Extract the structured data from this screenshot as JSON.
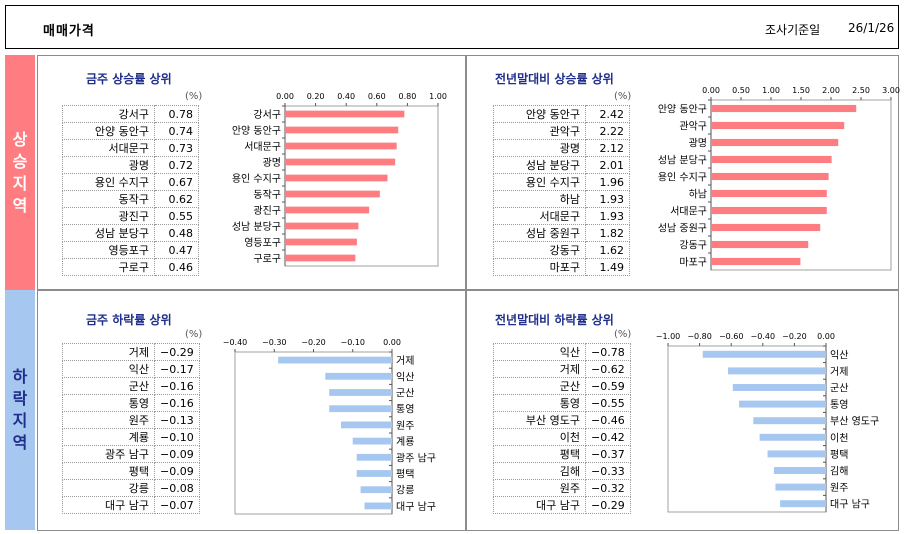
{
  "header": {
    "title": "매매가격",
    "date_label": "조사기준일",
    "date": "26/1/26"
  },
  "side": {
    "up_label": "상승지역",
    "down_label": "하락지역"
  },
  "chart_data": [
    {
      "id": "weekly-rise",
      "type": "bar",
      "title": "금주 상승률 상위",
      "unit": "(%)",
      "categories": [
        "강서구",
        "안양 동안구",
        "서대문구",
        "광명",
        "용인 수지구",
        "동작구",
        "광진구",
        "성남 분당구",
        "영등포구",
        "구로구"
      ],
      "values": [
        0.78,
        0.74,
        0.73,
        0.72,
        0.67,
        0.62,
        0.55,
        0.48,
        0.47,
        0.46
      ],
      "ticks": [
        "0.00",
        "0.20",
        "0.40",
        "0.60",
        "0.80",
        "1.00"
      ],
      "xlim": [
        0,
        1.0
      ],
      "color": "#ff7c80",
      "grid": false
    },
    {
      "id": "ytd-rise",
      "type": "bar",
      "title": "전년말대비 상승률 상위",
      "unit": "(%)",
      "categories": [
        "안양 동안구",
        "관악구",
        "광명",
        "성남 분당구",
        "용인 수지구",
        "하남",
        "서대문구",
        "성남 중원구",
        "강동구",
        "마포구"
      ],
      "values": [
        2.42,
        2.22,
        2.12,
        2.01,
        1.96,
        1.93,
        1.93,
        1.82,
        1.62,
        1.49
      ],
      "ticks": [
        "0.00",
        "0.50",
        "1.00",
        "1.50",
        "2.00",
        "2.50",
        "3.00"
      ],
      "xlim": [
        0,
        3.0
      ],
      "color": "#ff7c80",
      "grid": false
    },
    {
      "id": "weekly-fall",
      "type": "bar",
      "title": "금주 하락률 상위",
      "unit": "(%)",
      "categories": [
        "거제",
        "익산",
        "군산",
        "통영",
        "원주",
        "계룡",
        "광주 남구",
        "평택",
        "강릉",
        "대구 남구"
      ],
      "values": [
        -0.29,
        -0.17,
        -0.16,
        -0.16,
        -0.13,
        -0.1,
        -0.09,
        -0.09,
        -0.08,
        -0.07
      ],
      "ticks": [
        "-0.40",
        "-0.30",
        "-0.20",
        "-0.10",
        "0.00"
      ],
      "xlim": [
        -0.4,
        0
      ],
      "color": "#a6c8f0",
      "grid": false
    },
    {
      "id": "ytd-fall",
      "type": "bar",
      "title": "전년말대비 하락률 상위",
      "unit": "(%)",
      "categories": [
        "익산",
        "거제",
        "군산",
        "통영",
        "부산 영도구",
        "이천",
        "평택",
        "김해",
        "원주",
        "대구 남구"
      ],
      "values": [
        -0.78,
        -0.62,
        -0.59,
        -0.55,
        -0.46,
        -0.42,
        -0.37,
        -0.33,
        -0.32,
        -0.29
      ],
      "ticks": [
        "-1.00",
        "-0.80",
        "-0.60",
        "-0.40",
        "-0.20",
        "0.00"
      ],
      "xlim": [
        -1.0,
        0
      ],
      "color": "#a6c8f0",
      "grid": false
    }
  ]
}
